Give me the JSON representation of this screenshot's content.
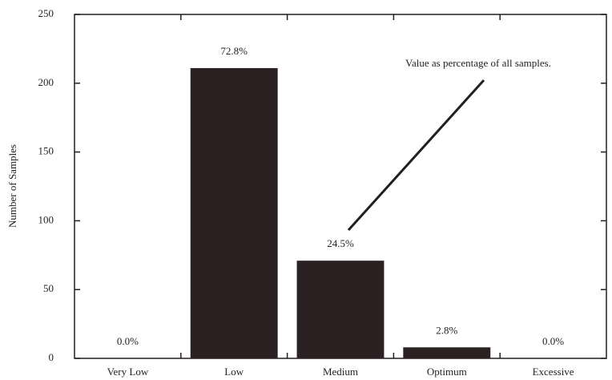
{
  "chart_data": {
    "type": "bar",
    "y_label": "Number of Samples",
    "annotation": "Value as percentage of all samples.",
    "categories": [
      "Very Low",
      "Low",
      "Medium",
      "Optimum",
      "Excessive"
    ],
    "values": [
      0,
      211,
      71,
      8,
      0
    ],
    "value_labels": [
      "0.0%",
      "72.8%",
      "24.5%",
      "2.8%",
      "0.0%"
    ],
    "color": "#2b2122",
    "ylim": [
      0,
      250
    ],
    "yticks": [
      0,
      50,
      100,
      150,
      200,
      250
    ]
  }
}
